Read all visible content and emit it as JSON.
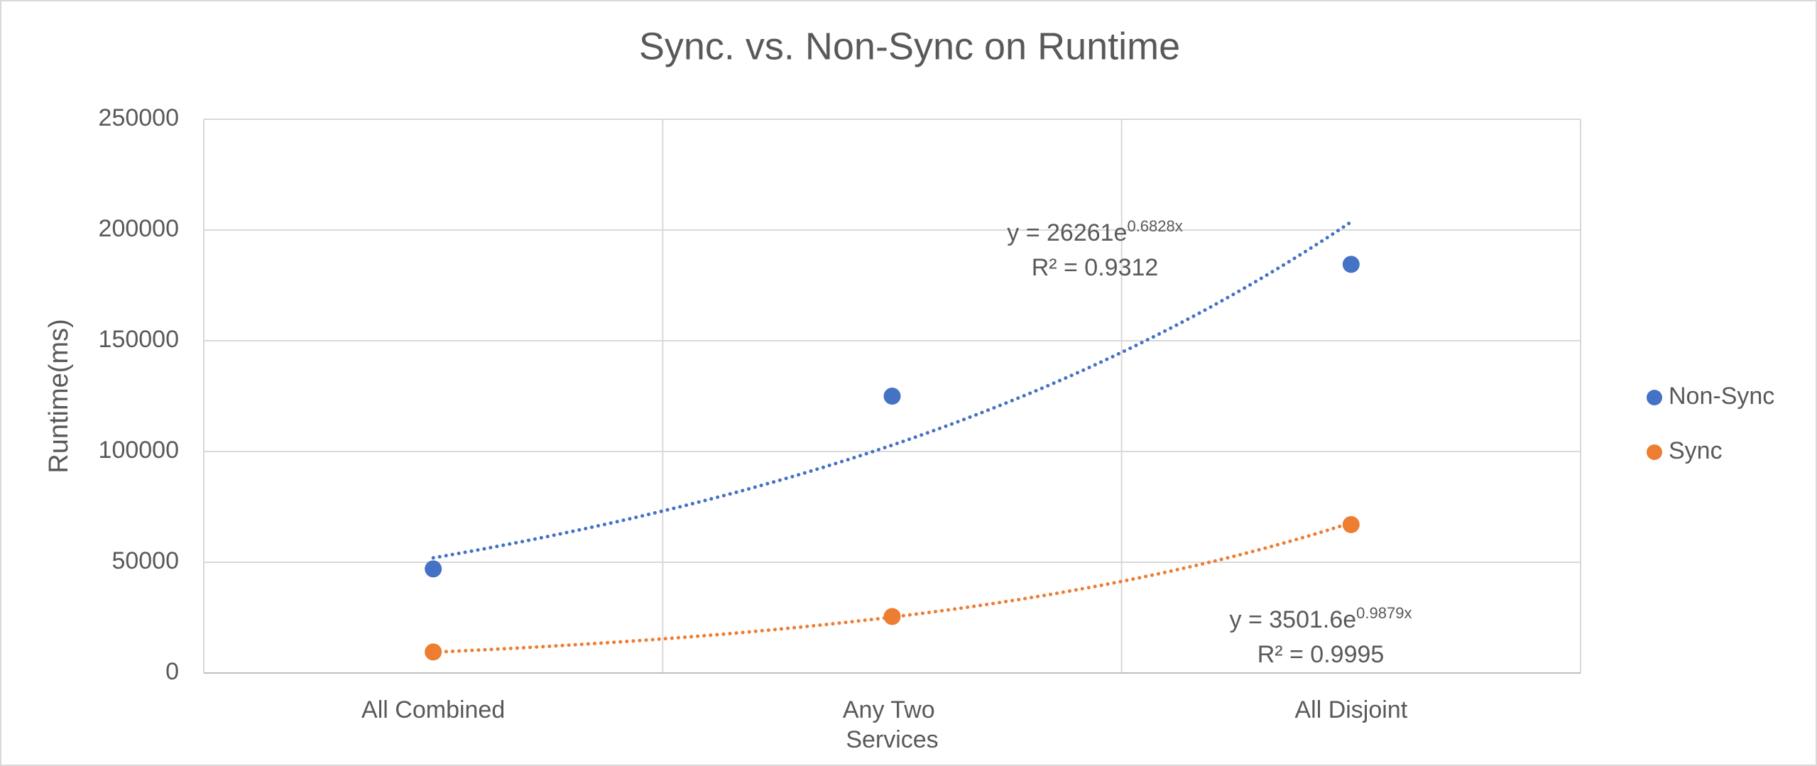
{
  "chart_data": {
    "type": "scatter",
    "title": "Sync. vs. Non-Sync on  Runtime",
    "y_label": "Runtime(ms)",
    "categories": [
      "All Combined",
      "Any Two Services",
      "All Disjoint"
    ],
    "ylim": [
      0,
      250000
    ],
    "yticks": [
      0,
      50000,
      100000,
      150000,
      200000,
      250000
    ],
    "grid": true,
    "legend": "right",
    "series": [
      {
        "name": "Non-Sync",
        "color": "#4472c4",
        "values": [
          47000,
          125000,
          184500
        ],
        "trendline": {
          "a": 26261,
          "b": 0.6828,
          "equation": "y = 26261e",
          "exponent_label": "0.6828x",
          "r2_label": "R² = 0.9312"
        }
      },
      {
        "name": "Sync",
        "color": "#ed7d31",
        "values": [
          9500,
          25500,
          67000
        ],
        "trendline": {
          "a": 3501.6,
          "b": 0.9879,
          "equation": "y = 3501.6e",
          "exponent_label": "0.9879x",
          "r2_label": "R² = 0.9995"
        }
      }
    ]
  }
}
